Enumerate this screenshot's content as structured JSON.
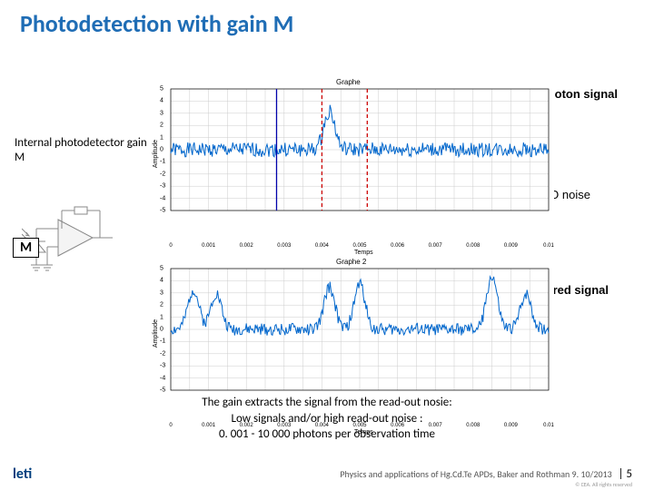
{
  "title": "Photodetection with gain M",
  "labels": {
    "detector": "Internal photodetector gain M",
    "photon": "M x Photon signal",
    "ro": "RO noise",
    "measured": "Measured signal",
    "m_box": "M"
  },
  "caption": {
    "l1": "The gain extracts the signal from the read-out nosie:",
    "l2": "Low signals and/or high read-out noise :",
    "l3": "0. 001 - 10 000 photons per observation time"
  },
  "footer": {
    "cite": "Physics and applications of Hg.Cd.Te APDs, Baker and Rothman 9. 10/2013",
    "pagenum": "| 5",
    "rights": "© CEA. All rights reserved"
  },
  "logo": {
    "text": "leti",
    "accent_idx": 3
  },
  "chart_common": {
    "ylim": [
      -5,
      5
    ],
    "ytick_step": 1,
    "xlim": [
      0,
      0.01
    ],
    "xticks": [
      0,
      0.0005,
      0.001,
      0.0015,
      0.002,
      0.0025,
      0.003,
      0.0035,
      0.004,
      0.0045,
      0.005,
      0.0055,
      0.006,
      0.0065,
      0.007,
      0.0075,
      0.008,
      0.0085,
      0.009,
      0.0095,
      0.01
    ],
    "ylabel": "Amplitude",
    "xlabel": "Temps",
    "grid_color": "#cccccc",
    "bg": "#ffffff",
    "label_fontsize": 7
  },
  "chart1": {
    "title": "Graphe",
    "signal_color": "#0066cc",
    "markers": [
      {
        "x": 0.0028,
        "color": "#0000aa",
        "style": "solid"
      },
      {
        "x": 0.004,
        "color": "#cc0000",
        "style": "dashed"
      },
      {
        "x": 0.0052,
        "color": "#cc0000",
        "style": "dashed"
      }
    ],
    "noise_amplitude": 0.6,
    "pulse_height": 3.2,
    "pulse_positions": [
      0.0042
    ]
  },
  "chart2": {
    "title": "Graphe 2",
    "signal_color": "#0066cc",
    "noise_amplitude": 0.5,
    "pulses": [
      {
        "x": 0.0006,
        "h": 3.3
      },
      {
        "x": 0.0012,
        "h": 3.0
      },
      {
        "x": 0.0042,
        "h": 3.5
      },
      {
        "x": 0.005,
        "h": 3.8
      },
      {
        "x": 0.0085,
        "h": 4.4
      },
      {
        "x": 0.0094,
        "h": 3.0
      }
    ]
  },
  "colors": {
    "title": "#1f6db5",
    "accent": "#e3001b",
    "text": "#000000"
  }
}
